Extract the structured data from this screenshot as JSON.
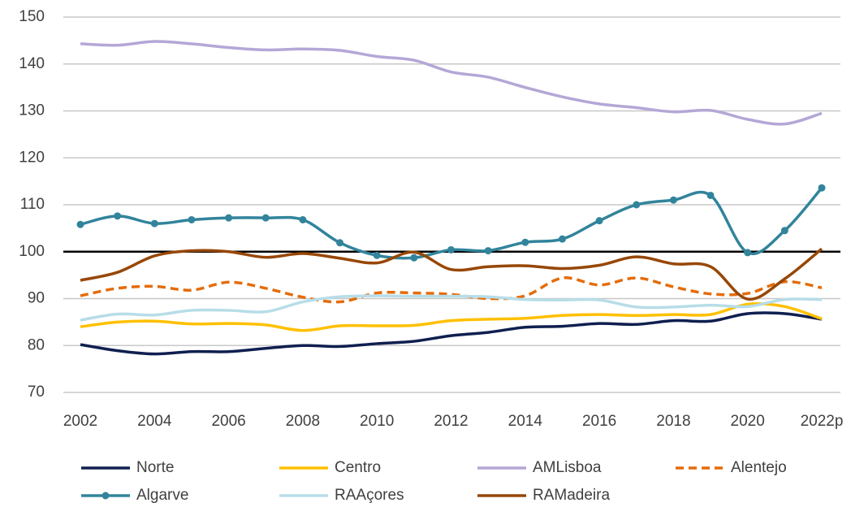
{
  "chart_data": {
    "type": "line",
    "categories": [
      "2002",
      null,
      "2004",
      null,
      "2006",
      null,
      "2008",
      null,
      "2010",
      null,
      "2012",
      null,
      "2014",
      null,
      "2016",
      null,
      "2018",
      null,
      "2020",
      null,
      "2022p"
    ],
    "ylim": [
      70,
      150
    ],
    "yticks": [
      70,
      80,
      90,
      100,
      110,
      120,
      130,
      140,
      150
    ],
    "grid": true,
    "reference_line": 100,
    "smooth": true,
    "legend": "bottom",
    "series": [
      {
        "name": "Norte",
        "color": "#0f1f4f",
        "values": [
          80.2,
          78.9,
          78.2,
          78.7,
          78.7,
          79.4,
          80.0,
          79.8,
          80.4,
          80.9,
          82.1,
          82.8,
          83.9,
          84.1,
          84.7,
          84.5,
          85.3,
          85.2,
          86.8,
          86.8,
          85.6
        ]
      },
      {
        "name": "Centro",
        "color": "#ffc000",
        "values": [
          84.0,
          85.0,
          85.2,
          84.6,
          84.7,
          84.4,
          83.2,
          84.2,
          84.2,
          84.3,
          85.3,
          85.6,
          85.8,
          86.4,
          86.6,
          86.4,
          86.6,
          86.6,
          88.8,
          88.3,
          85.7
        ]
      },
      {
        "name": "AMLisboa",
        "color": "#b4a7d6",
        "values": [
          144.3,
          144.0,
          144.8,
          144.3,
          143.5,
          143.0,
          143.2,
          142.9,
          141.6,
          140.8,
          138.3,
          137.2,
          135.0,
          133.0,
          131.5,
          130.7,
          129.8,
          130.1,
          128.2,
          127.2,
          129.5
        ]
      },
      {
        "name": "Alentejo",
        "color": "#e46c0a",
        "dashed": true,
        "values": [
          90.6,
          92.2,
          92.6,
          91.8,
          93.5,
          92.2,
          90.3,
          89.3,
          91.2,
          91.2,
          90.9,
          90.0,
          90.6,
          94.4,
          92.9,
          94.4,
          92.5,
          91.0,
          91.1,
          93.6,
          92.3
        ]
      },
      {
        "name": "Algarve",
        "color": "#31849b",
        "markers": true,
        "values": [
          105.8,
          107.6,
          106.0,
          106.8,
          107.2,
          107.2,
          106.8,
          101.9,
          99.2,
          98.7,
          100.4,
          100.2,
          102.0,
          102.7,
          106.6,
          110.0,
          111.0,
          112.0,
          99.8,
          104.5,
          113.6
        ]
      },
      {
        "name": "RAAçores",
        "color": "#b7dde8",
        "values": [
          85.4,
          86.7,
          86.5,
          87.5,
          87.5,
          87.2,
          89.3,
          90.4,
          90.6,
          90.5,
          90.5,
          90.4,
          89.8,
          89.7,
          89.7,
          88.2,
          88.2,
          88.6,
          88.3,
          89.8,
          89.8
        ]
      },
      {
        "name": "RAMadeira",
        "color": "#974706",
        "values": [
          93.9,
          95.6,
          99.1,
          100.2,
          100.0,
          98.8,
          99.6,
          98.6,
          97.6,
          99.9,
          96.2,
          96.8,
          97.0,
          96.4,
          97.1,
          98.9,
          97.4,
          96.8,
          89.9,
          94.2,
          100.6
        ]
      }
    ]
  }
}
